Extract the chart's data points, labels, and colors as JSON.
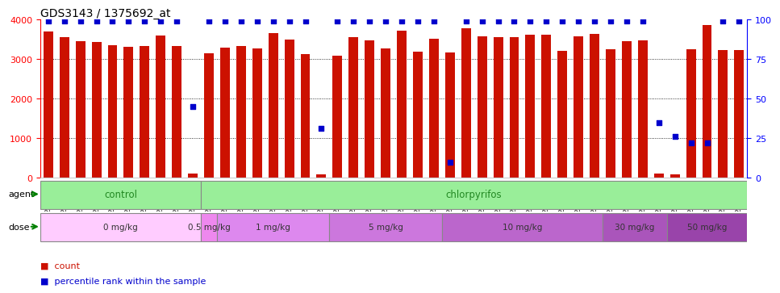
{
  "title": "GDS3143 / 1375692_at",
  "samples": [
    "GSM246129",
    "GSM246130",
    "GSM246131",
    "GSM246145",
    "GSM246146",
    "GSM246147",
    "GSM246148",
    "GSM246157",
    "GSM246158",
    "GSM246159",
    "GSM246149",
    "GSM246150",
    "GSM246151",
    "GSM246152",
    "GSM246132",
    "GSM246133",
    "GSM246134",
    "GSM246135",
    "GSM246160",
    "GSM246161",
    "GSM246162",
    "GSM246163",
    "GSM246164",
    "GSM246165",
    "GSM246166",
    "GSM246167",
    "GSM246136",
    "GSM246137",
    "GSM246138",
    "GSM246139",
    "GSM246140",
    "GSM246168",
    "GSM246169",
    "GSM246170",
    "GSM246171",
    "GSM246154",
    "GSM246155",
    "GSM246156",
    "GSM246172",
    "GSM246173",
    "GSM246141",
    "GSM246142",
    "GSM246143",
    "GSM246144"
  ],
  "counts": [
    3700,
    3550,
    3460,
    3430,
    3360,
    3310,
    3340,
    3590,
    3340,
    100,
    3140,
    3290,
    3340,
    3270,
    3650,
    3490,
    3130,
    80,
    3080,
    3560,
    3480,
    3280,
    3720,
    3180,
    3520,
    3160,
    3780,
    3580,
    3560,
    3550,
    3620,
    3610,
    3200,
    3570,
    3640,
    3260,
    3450,
    3470,
    100,
    80,
    3250,
    3860,
    3230,
    3220
  ],
  "percentile_ranks": [
    99,
    99,
    99,
    99,
    99,
    99,
    99,
    99,
    99,
    45,
    99,
    99,
    99,
    99,
    99,
    99,
    99,
    31,
    99,
    99,
    99,
    99,
    99,
    99,
    99,
    10,
    99,
    99,
    99,
    99,
    99,
    99,
    99,
    99,
    99,
    99,
    99,
    99,
    35,
    26,
    22,
    22,
    99,
    99
  ],
  "agent_groups": [
    {
      "label": "control",
      "start": 0,
      "end": 9
    },
    {
      "label": "chlorpyrifos",
      "start": 10,
      "end": 43
    }
  ],
  "dose_groups": [
    {
      "label": "0 mg/kg",
      "start": 0,
      "end": 9
    },
    {
      "label": "0.5 mg/kg",
      "start": 10,
      "end": 10
    },
    {
      "label": "1 mg/kg",
      "start": 11,
      "end": 17
    },
    {
      "label": "5 mg/kg",
      "start": 18,
      "end": 24
    },
    {
      "label": "10 mg/kg",
      "start": 25,
      "end": 34
    },
    {
      "label": "30 mg/kg",
      "start": 35,
      "end": 38
    },
    {
      "label": "50 mg/kg",
      "start": 39,
      "end": 43
    }
  ],
  "bar_color": "#cc1100",
  "dot_color": "#0000cc",
  "agent_color": "#99ee99",
  "dose_colors": [
    "#ffccff",
    "#ee88ee",
    "#dd88ee",
    "#cc77dd",
    "#bb66cc",
    "#aa55bb",
    "#9944aa"
  ],
  "ylim_left": [
    0,
    4000
  ],
  "ylim_right": [
    0,
    100
  ],
  "yticks_left": [
    0,
    1000,
    2000,
    3000,
    4000
  ],
  "yticks_right": [
    0,
    25,
    50,
    75,
    100
  ],
  "grid_levels": [
    1000,
    2000,
    3000
  ],
  "title_fontsize": 10,
  "tick_fontsize": 6.5,
  "label_fontsize": 8.5
}
